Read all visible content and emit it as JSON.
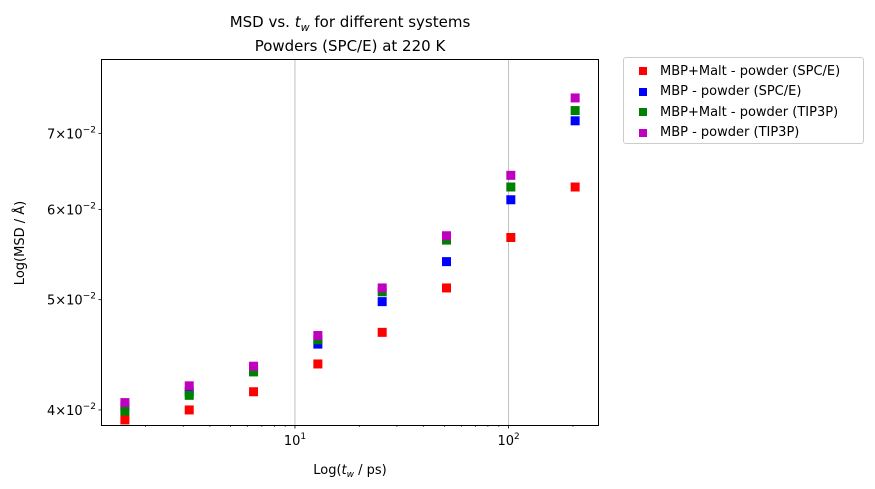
{
  "chart_data": {
    "type": "scatter",
    "title_line1_pre": "MSD vs. ",
    "title_var": "t",
    "title_sub": "w",
    "title_line1_post": " for different systems",
    "title_line2": "Powders (SPC/E) at 220 K",
    "xlabel_pre": "Log(",
    "xlabel_var": "t",
    "xlabel_sub": "w",
    "xlabel_post": " / ps)",
    "ylabel": "Log(MSD / Å)",
    "xscale": "log",
    "yscale": "log",
    "xlim": [
      1.25,
      262
    ],
    "ylim": [
      0.0388,
      0.0812
    ],
    "x_ticks": [
      {
        "value": 10,
        "base": "10",
        "exp": "1"
      },
      {
        "value": 100,
        "base": "10",
        "exp": "2"
      }
    ],
    "y_ticks": [
      {
        "value": 0.04,
        "mant": "4",
        "mid": "×10",
        "exp": "−2"
      },
      {
        "value": 0.05,
        "mant": "5",
        "mid": "×10",
        "exp": "−2"
      },
      {
        "value": 0.06,
        "mant": "6",
        "mid": "×10",
        "exp": "−2"
      },
      {
        "value": 0.07,
        "mant": "7",
        "mid": "×10",
        "exp": "−2"
      }
    ],
    "grid": "x-major",
    "legend_position": "outside-top-right",
    "x": [
      1.6,
      3.2,
      6.4,
      12.8,
      25.6,
      51.2,
      102.4,
      204.8
    ],
    "series": [
      {
        "name": "MBP+Malt - powder (SPC/E)",
        "color": "#ff0000",
        "values": [
          0.0392,
          0.04,
          0.0415,
          0.0439,
          0.0468,
          0.0512,
          0.0567,
          0.0628
        ]
      },
      {
        "name": "MBP - powder (SPC/E)",
        "color": "#0000ff",
        "values": [
          0.0403,
          0.0415,
          0.0434,
          0.0457,
          0.0498,
          0.054,
          0.0612,
          0.0718
        ]
      },
      {
        "name": "MBP+Malt - powder (TIP3P)",
        "color": "#008000",
        "values": [
          0.0399,
          0.0412,
          0.0432,
          0.0461,
          0.0508,
          0.0564,
          0.0628,
          0.0733
        ]
      },
      {
        "name": "MBP - powder (TIP3P)",
        "color": "#bf00bf",
        "values": [
          0.0406,
          0.042,
          0.0437,
          0.0465,
          0.0512,
          0.0569,
          0.0643,
          0.0752
        ]
      }
    ]
  }
}
